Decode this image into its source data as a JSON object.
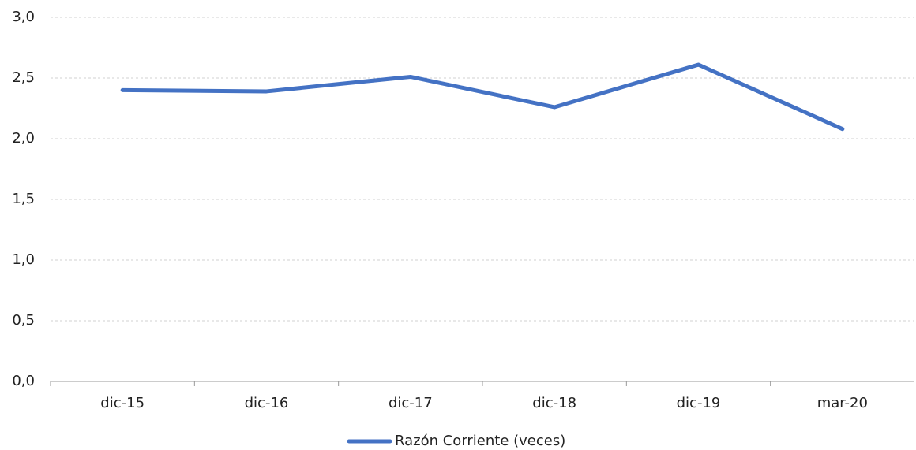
{
  "chart_data": {
    "type": "line",
    "categories": [
      "dic-15",
      "dic-16",
      "dic-17",
      "dic-18",
      "dic-19",
      "mar-20"
    ],
    "series": [
      {
        "name": "Razón Corriente (veces)",
        "color": "#4472c4",
        "values": [
          2.4,
          2.39,
          2.51,
          2.26,
          2.61,
          2.08
        ]
      }
    ],
    "ylim": [
      0,
      3
    ],
    "yticks": [
      {
        "value": 0,
        "label": "0,0"
      },
      {
        "value": 0.5,
        "label": "0,5"
      },
      {
        "value": 1,
        "label": "1,0"
      },
      {
        "value": 1.5,
        "label": "1,5"
      },
      {
        "value": 2,
        "label": "2,0"
      },
      {
        "value": 2.5,
        "label": "2,5"
      },
      {
        "value": 3,
        "label": "3,0"
      }
    ],
    "grid": true,
    "legend": "bottom"
  }
}
